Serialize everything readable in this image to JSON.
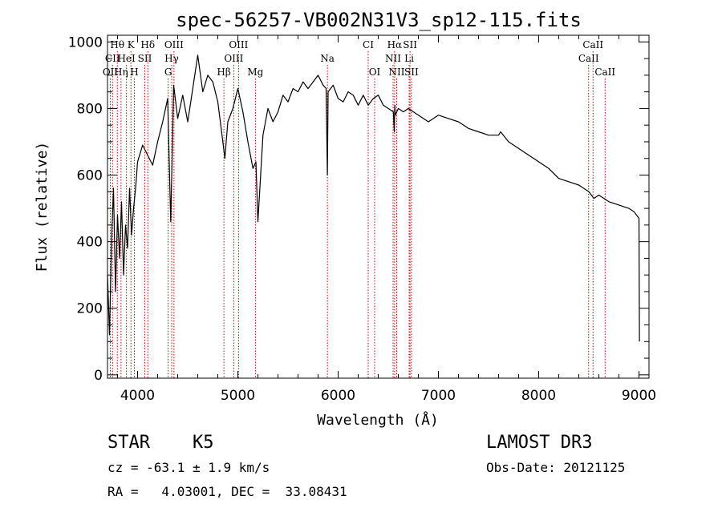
{
  "chart_data": {
    "type": "line",
    "title": "spec-56257-VB002N31V3_sp12-115.fits",
    "xlabel": "Wavelength (Å)",
    "ylabel": "Flux (relative)",
    "xlim": [
      3700,
      9100
    ],
    "ylim": [
      -10,
      1020
    ],
    "xticks": [
      4000,
      5000,
      6000,
      7000,
      8000,
      9000
    ],
    "yticks": [
      0,
      200,
      400,
      600,
      800,
      1000
    ],
    "series": [
      {
        "name": "flux",
        "x": [
          3700,
          3720,
          3740,
          3760,
          3780,
          3800,
          3820,
          3840,
          3860,
          3880,
          3900,
          3920,
          3940,
          3960,
          3980,
          4000,
          4050,
          4100,
          4150,
          4200,
          4250,
          4300,
          4330,
          4360,
          4400,
          4450,
          4500,
          4550,
          4600,
          4650,
          4700,
          4750,
          4800,
          4850,
          4870,
          4900,
          4950,
          5000,
          5050,
          5100,
          5150,
          5180,
          5200,
          5250,
          5300,
          5350,
          5400,
          5450,
          5500,
          5550,
          5600,
          5650,
          5700,
          5750,
          5800,
          5850,
          5880,
          5893,
          5900,
          5950,
          6000,
          6050,
          6100,
          6150,
          6200,
          6250,
          6300,
          6350,
          6400,
          6450,
          6500,
          6550,
          6560,
          6565,
          6570,
          6600,
          6650,
          6700,
          6800,
          6900,
          7000,
          7100,
          7200,
          7300,
          7400,
          7500,
          7600,
          7620,
          7700,
          7800,
          7900,
          8000,
          8100,
          8200,
          8300,
          8400,
          8450,
          8500,
          8550,
          8600,
          8700,
          8800,
          8900,
          8950,
          9000,
          9005
        ],
        "values": [
          300,
          120,
          400,
          560,
          250,
          480,
          350,
          520,
          300,
          450,
          380,
          560,
          420,
          500,
          560,
          640,
          690,
          660,
          630,
          700,
          760,
          830,
          460,
          870,
          770,
          840,
          760,
          860,
          960,
          850,
          900,
          880,
          820,
          700,
          650,
          760,
          800,
          860,
          790,
          700,
          620,
          640,
          460,
          720,
          800,
          760,
          790,
          840,
          820,
          860,
          850,
          880,
          860,
          880,
          900,
          870,
          860,
          600,
          850,
          870,
          830,
          820,
          850,
          840,
          810,
          840,
          810,
          830,
          840,
          810,
          800,
          790,
          730,
          810,
          780,
          800,
          790,
          800,
          780,
          760,
          780,
          770,
          760,
          740,
          730,
          720,
          720,
          730,
          700,
          680,
          660,
          640,
          620,
          590,
          580,
          570,
          560,
          550,
          530,
          540,
          520,
          510,
          500,
          490,
          470,
          100
        ]
      }
    ],
    "lines": [
      {
        "name": "Hθ",
        "x": 3798,
        "row": 0
      },
      {
        "name": "CII",
        "x": 3750,
        "row": 1
      },
      {
        "name": "OII",
        "x": 3728,
        "row": 2
      },
      {
        "name": "K",
        "x": 3934,
        "row": 0
      },
      {
        "name": "Hδ",
        "x": 4102,
        "row": 0
      },
      {
        "name": "HeI",
        "x": 3889,
        "row": 1
      },
      {
        "name": "Hη",
        "x": 3835,
        "row": 2
      },
      {
        "name": "H",
        "x": 3968,
        "row": 2
      },
      {
        "name": "SII",
        "x": 4072,
        "row": 1
      },
      {
        "name": "OIII",
        "x": 4363,
        "row": 0
      },
      {
        "name": "Hγ",
        "x": 4340,
        "row": 1
      },
      {
        "name": "G",
        "x": 4305,
        "row": 2
      },
      {
        "name": "Hβ",
        "x": 4861,
        "row": 2
      },
      {
        "name": "OIII",
        "x": 4959,
        "row": 1
      },
      {
        "name": "OIII",
        "x": 5007,
        "row": 0
      },
      {
        "name": "Mg",
        "x": 5175,
        "row": 2
      },
      {
        "name": "Na",
        "x": 5893,
        "row": 1
      },
      {
        "name": "CI",
        "x": 6300,
        "row": 0
      },
      {
        "name": "OI",
        "x": 6364,
        "row": 2
      },
      {
        "name": "Hα",
        "x": 6563,
        "row": 0
      },
      {
        "name": "NII",
        "x": 6548,
        "row": 1
      },
      {
        "name": "NII",
        "x": 6584,
        "row": 2
      },
      {
        "name": "SII",
        "x": 6717,
        "row": 0
      },
      {
        "name": "Li",
        "x": 6708,
        "row": 1
      },
      {
        "name": "SII",
        "x": 6731,
        "row": 2
      },
      {
        "name": "CaII",
        "x": 8542,
        "row": 0
      },
      {
        "name": "CaII",
        "x": 8498,
        "row": 1
      },
      {
        "name": "CaII",
        "x": 8662,
        "row": 2
      }
    ]
  },
  "info": {
    "class": "STAR",
    "subclass": "K5",
    "survey": "LAMOST DR3",
    "cz": "cz = -63.1 ± 1.9 km/s",
    "coords": "RA =   4.03001, DEC =  33.08431",
    "obs_date": "Obs-Date: 20121125"
  },
  "colors": {
    "spectrum": "#000000",
    "lines": "#cc0000",
    "axes": "#000000"
  }
}
